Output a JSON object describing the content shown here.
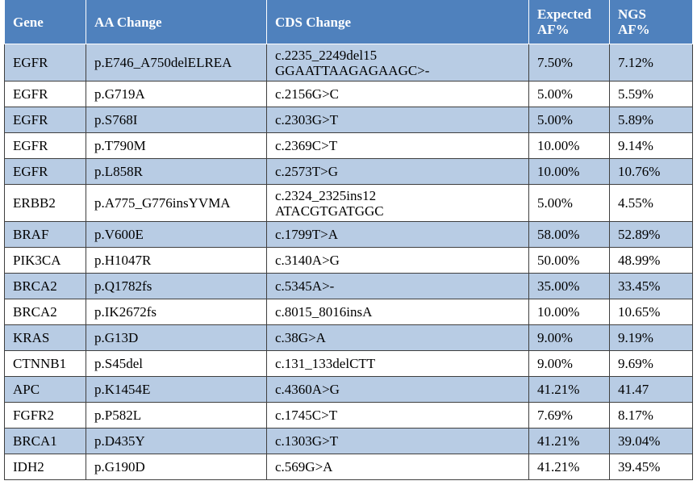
{
  "table": {
    "header": [
      "Gene",
      "AA Change",
      "CDS Change",
      "Expected\nAF%",
      "NGS\nAF%"
    ],
    "rows": [
      [
        "EGFR",
        "p.E746_A750delELREA",
        "c.2235_2249del15\nGGAATTAAGAGAAGC>-",
        "7.50%",
        "7.12%"
      ],
      [
        "EGFR",
        "p.G719A",
        "c.2156G>C",
        "5.00%",
        "5.59%"
      ],
      [
        "EGFR",
        "p.S768I",
        "c.2303G>T",
        "5.00%",
        "5.89%"
      ],
      [
        "EGFR",
        "p.T790M",
        "c.2369C>T",
        "10.00%",
        "9.14%"
      ],
      [
        "EGFR",
        "p.L858R",
        "c.2573T>G",
        "10.00%",
        "10.76%"
      ],
      [
        "ERBB2",
        "p.A775_G776insYVMA",
        "c.2324_2325ins12\nATACGTGATGGC",
        "5.00%",
        "4.55%"
      ],
      [
        "BRAF",
        "p.V600E",
        "c.1799T>A",
        "58.00%",
        "52.89%"
      ],
      [
        "PIK3CA",
        "p.H1047R",
        "c.3140A>G",
        "50.00%",
        "48.99%"
      ],
      [
        "BRCA2",
        "p.Q1782fs",
        "c.5345A>-",
        "35.00%",
        "33.45%"
      ],
      [
        "BRCA2",
        "p.IK2672fs",
        "c.8015_8016insA",
        "10.00%",
        "10.65%"
      ],
      [
        "KRAS",
        "p.G13D",
        "c.38G>A",
        "9.00%",
        "9.19%"
      ],
      [
        "CTNNB1",
        "p.S45del",
        "c.131_133delCTT",
        "9.00%",
        "9.69%"
      ],
      [
        "APC",
        "p.K1454E",
        "c.4360A>G",
        "41.21%",
        "41.47"
      ],
      [
        "FGFR2",
        "p.P582L",
        "c.1745C>T",
        "7.69%",
        "8.17%"
      ],
      [
        "BRCA1",
        "p.D435Y",
        "c.1303G>T",
        "41.21%",
        "39.04%"
      ],
      [
        "IDH2",
        "p.G190D",
        "c.569G>A",
        "41.21%",
        "39.45%"
      ]
    ]
  }
}
